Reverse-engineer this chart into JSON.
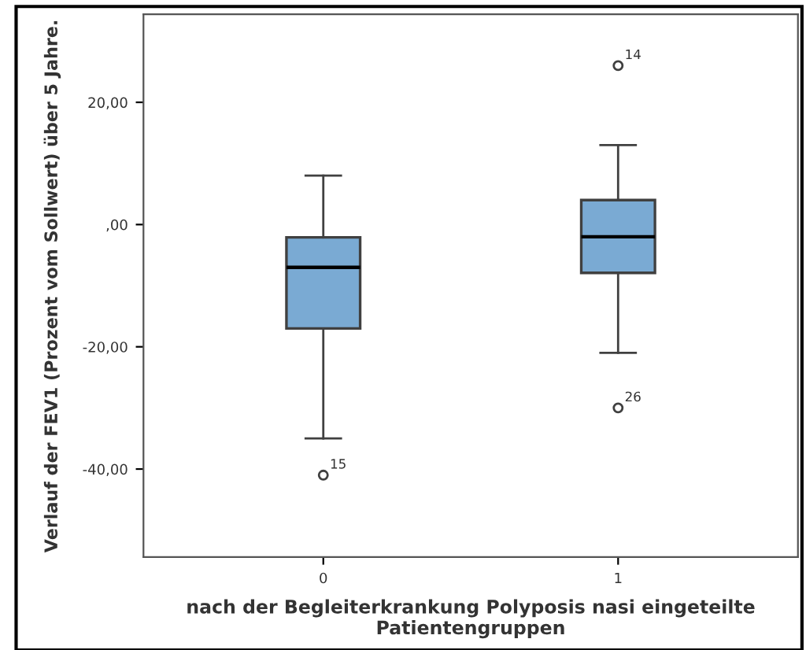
{
  "chart_data": {
    "type": "box",
    "xlabel": "nach der Begleiterkrankung Polyposis nasi eingeteilte Patientengruppen",
    "ylabel": "Verlauf der FEV1 (Prozent vom Sollwert) über 5 Jahre.",
    "categories": [
      "0",
      "1"
    ],
    "color": "#7aaad3",
    "boxes": [
      {
        "low": -35,
        "q1": -17,
        "median": -7,
        "q3": -2.1,
        "high": 8,
        "outliers": [
          -41
        ]
      },
      {
        "low": -21,
        "q1": -7.9,
        "median": -2,
        "q3": 4,
        "high": 13,
        "outliers": [
          26,
          -30
        ]
      }
    ],
    "annotations": [
      "15",
      "14",
      "26"
    ],
    "ylim": [
      -54.4,
      34.4
    ],
    "yticks": [
      {
        "value": -40,
        "label": "-40,00"
      },
      {
        "value": -20,
        "label": "-20,00"
      },
      {
        "value": 0,
        "label": ",00"
      },
      {
        "value": 20,
        "label": "20,00"
      }
    ],
    "grid": false,
    "legend": false
  }
}
